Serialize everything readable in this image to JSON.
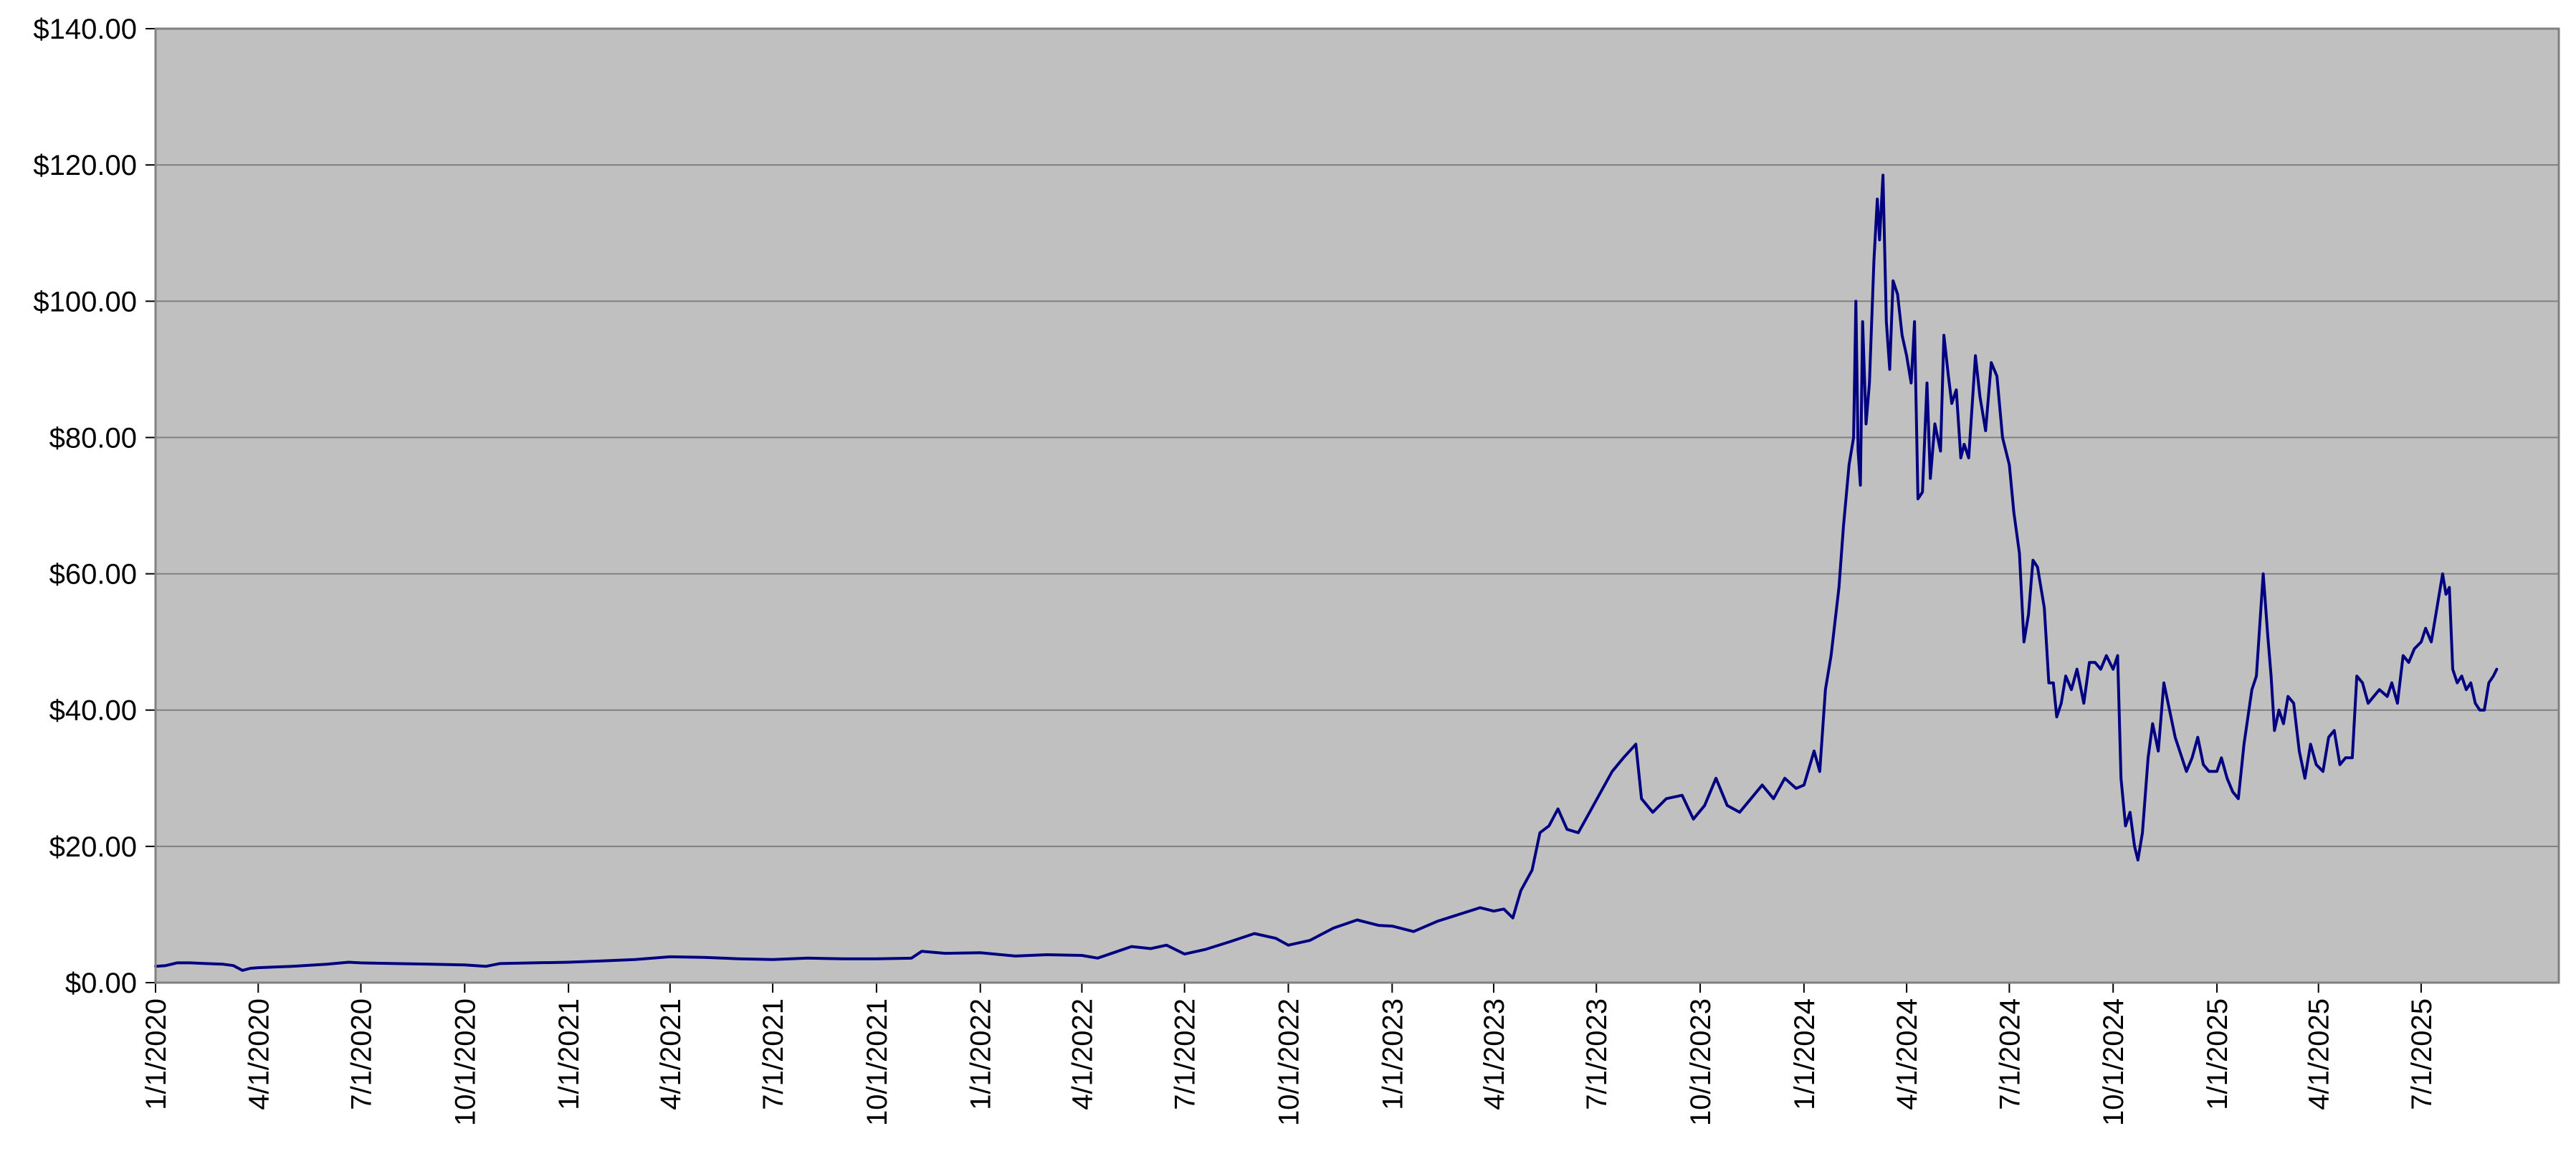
{
  "chart_data": {
    "type": "line",
    "title": "",
    "xlabel": "",
    "ylabel": "",
    "x_axis": {
      "kind": "date",
      "range": [
        "2020-01-01",
        "2025-10-31"
      ],
      "tick_values": [
        "2020-01-01",
        "2020-04-01",
        "2020-07-01",
        "2020-10-01",
        "2021-01-01",
        "2021-04-01",
        "2021-07-01",
        "2021-10-01",
        "2022-01-01",
        "2022-04-01",
        "2022-07-01",
        "2022-10-01",
        "2023-01-01",
        "2023-04-01",
        "2023-07-01",
        "2023-10-01",
        "2024-01-01",
        "2024-04-01",
        "2024-07-01",
        "2024-10-01",
        "2025-01-01",
        "2025-04-01",
        "2025-07-01"
      ],
      "tick_labels": [
        "1/1/2020",
        "4/1/2020",
        "7/1/2020",
        "10/1/2020",
        "1/1/2021",
        "4/1/2021",
        "7/1/2021",
        "10/1/2021",
        "1/1/2022",
        "4/1/2022",
        "7/1/2022",
        "10/1/2022",
        "1/1/2023",
        "4/1/2023",
        "7/1/2023",
        "10/1/2023",
        "1/1/2024",
        "4/1/2024",
        "7/1/2024",
        "10/1/2024",
        "1/1/2025",
        "4/1/2025",
        "7/1/2025"
      ]
    },
    "y_axis": {
      "range": [
        0,
        140
      ],
      "tick_values": [
        0,
        20,
        40,
        60,
        80,
        100,
        120,
        140
      ],
      "tick_labels": [
        "$0.00",
        "$20.00",
        "$40.00",
        "$60.00",
        "$80.00",
        "$100.00",
        "$120.00",
        "$140.00"
      ]
    },
    "grid": {
      "horizontal": true,
      "vertical": false
    },
    "legend": "none",
    "colors": {
      "plot_background": "#c0c0c0",
      "line": "#000080",
      "gridline": "#808080",
      "axis": "#000000"
    },
    "series": [
      {
        "points": [
          [
            "2020-01-01",
            2.4
          ],
          [
            "2020-01-10",
            2.5
          ],
          [
            "2020-01-20",
            2.9
          ],
          [
            "2020-02-01",
            2.9
          ],
          [
            "2020-02-15",
            2.8
          ],
          [
            "2020-03-01",
            2.7
          ],
          [
            "2020-03-10",
            2.5
          ],
          [
            "2020-03-18",
            1.8
          ],
          [
            "2020-03-25",
            2.1
          ],
          [
            "2020-04-01",
            2.2
          ],
          [
            "2020-05-01",
            2.4
          ],
          [
            "2020-06-01",
            2.7
          ],
          [
            "2020-06-20",
            3.0
          ],
          [
            "2020-07-01",
            2.9
          ],
          [
            "2020-08-01",
            2.8
          ],
          [
            "2020-09-01",
            2.7
          ],
          [
            "2020-10-01",
            2.6
          ],
          [
            "2020-10-20",
            2.4
          ],
          [
            "2020-11-01",
            2.8
          ],
          [
            "2020-12-01",
            2.9
          ],
          [
            "2021-01-01",
            3.0
          ],
          [
            "2021-02-01",
            3.2
          ],
          [
            "2021-03-01",
            3.4
          ],
          [
            "2021-04-01",
            3.8
          ],
          [
            "2021-05-01",
            3.7
          ],
          [
            "2021-06-01",
            3.5
          ],
          [
            "2021-07-01",
            3.4
          ],
          [
            "2021-08-01",
            3.6
          ],
          [
            "2021-09-01",
            3.5
          ],
          [
            "2021-10-01",
            3.5
          ],
          [
            "2021-11-01",
            3.6
          ],
          [
            "2021-11-10",
            4.6
          ],
          [
            "2021-12-01",
            4.3
          ],
          [
            "2022-01-01",
            4.4
          ],
          [
            "2022-02-01",
            3.9
          ],
          [
            "2022-03-01",
            4.1
          ],
          [
            "2022-04-01",
            4.0
          ],
          [
            "2022-04-15",
            3.6
          ],
          [
            "2022-05-01",
            4.5
          ],
          [
            "2022-05-15",
            5.3
          ],
          [
            "2022-06-01",
            5.0
          ],
          [
            "2022-06-15",
            5.5
          ],
          [
            "2022-07-01",
            4.2
          ],
          [
            "2022-07-20",
            4.9
          ],
          [
            "2022-08-10",
            6.0
          ],
          [
            "2022-09-01",
            7.2
          ],
          [
            "2022-09-20",
            6.5
          ],
          [
            "2022-10-01",
            5.5
          ],
          [
            "2022-10-20",
            6.2
          ],
          [
            "2022-11-10",
            8.0
          ],
          [
            "2022-12-01",
            9.2
          ],
          [
            "2022-12-20",
            8.4
          ],
          [
            "2023-01-01",
            8.3
          ],
          [
            "2023-01-20",
            7.5
          ],
          [
            "2023-02-10",
            9.0
          ],
          [
            "2023-03-01",
            10.0
          ],
          [
            "2023-03-20",
            11.0
          ],
          [
            "2023-04-01",
            10.5
          ],
          [
            "2023-04-10",
            10.8
          ],
          [
            "2023-04-18",
            9.5
          ],
          [
            "2023-04-25",
            13.5
          ],
          [
            "2023-05-05",
            16.5
          ],
          [
            "2023-05-12",
            22.0
          ],
          [
            "2023-05-20",
            23.0
          ],
          [
            "2023-05-28",
            25.5
          ],
          [
            "2023-06-05",
            22.5
          ],
          [
            "2023-06-15",
            22.0
          ],
          [
            "2023-06-25",
            25.0
          ],
          [
            "2023-07-05",
            28.0
          ],
          [
            "2023-07-15",
            31.0
          ],
          [
            "2023-07-25",
            33.0
          ],
          [
            "2023-08-05",
            35.0
          ],
          [
            "2023-08-10",
            27.0
          ],
          [
            "2023-08-20",
            25.0
          ],
          [
            "2023-09-01",
            27.0
          ],
          [
            "2023-09-15",
            27.5
          ],
          [
            "2023-09-25",
            24.0
          ],
          [
            "2023-10-05",
            26.0
          ],
          [
            "2023-10-15",
            30.0
          ],
          [
            "2023-10-25",
            26.0
          ],
          [
            "2023-11-05",
            25.0
          ],
          [
            "2023-11-15",
            27.0
          ],
          [
            "2023-11-25",
            29.0
          ],
          [
            "2023-12-05",
            27.0
          ],
          [
            "2023-12-15",
            30.0
          ],
          [
            "2023-12-25",
            28.5
          ],
          [
            "2024-01-01",
            29.0
          ],
          [
            "2024-01-10",
            34.0
          ],
          [
            "2024-01-15",
            31.0
          ],
          [
            "2024-01-20",
            43.0
          ],
          [
            "2024-01-25",
            48.0
          ],
          [
            "2024-02-01",
            58.0
          ],
          [
            "2024-02-05",
            67.0
          ],
          [
            "2024-02-10",
            76.0
          ],
          [
            "2024-02-14",
            80.0
          ],
          [
            "2024-02-16",
            100.0
          ],
          [
            "2024-02-18",
            78.0
          ],
          [
            "2024-02-20",
            73.0
          ],
          [
            "2024-02-22",
            97.0
          ],
          [
            "2024-02-25",
            82.0
          ],
          [
            "2024-02-28",
            88.0
          ],
          [
            "2024-03-03",
            106.0
          ],
          [
            "2024-03-06",
            115.0
          ],
          [
            "2024-03-08",
            109.0
          ],
          [
            "2024-03-11",
            118.5
          ],
          [
            "2024-03-14",
            97.0
          ],
          [
            "2024-03-17",
            90.0
          ],
          [
            "2024-03-20",
            103.0
          ],
          [
            "2024-03-24",
            101.0
          ],
          [
            "2024-03-28",
            95.0
          ],
          [
            "2024-04-01",
            92.0
          ],
          [
            "2024-04-05",
            88.0
          ],
          [
            "2024-04-08",
            97.0
          ],
          [
            "2024-04-11",
            71.0
          ],
          [
            "2024-04-15",
            72.0
          ],
          [
            "2024-04-19",
            88.0
          ],
          [
            "2024-04-22",
            74.0
          ],
          [
            "2024-04-26",
            82.0
          ],
          [
            "2024-05-01",
            78.0
          ],
          [
            "2024-05-04",
            95.0
          ],
          [
            "2024-05-08",
            89.0
          ],
          [
            "2024-05-11",
            85.0
          ],
          [
            "2024-05-15",
            87.0
          ],
          [
            "2024-05-19",
            77.0
          ],
          [
            "2024-05-22",
            79.0
          ],
          [
            "2024-05-26",
            77.0
          ],
          [
            "2024-06-01",
            92.0
          ],
          [
            "2024-06-05",
            86.0
          ],
          [
            "2024-06-10",
            81.0
          ],
          [
            "2024-06-15",
            91.0
          ],
          [
            "2024-06-20",
            89.0
          ],
          [
            "2024-06-25",
            80.0
          ],
          [
            "2024-07-01",
            76.0
          ],
          [
            "2024-07-05",
            69.0
          ],
          [
            "2024-07-10",
            63.0
          ],
          [
            "2024-07-14",
            50.0
          ],
          [
            "2024-07-18",
            54.0
          ],
          [
            "2024-07-22",
            62.0
          ],
          [
            "2024-07-26",
            61.0
          ],
          [
            "2024-08-01",
            55.0
          ],
          [
            "2024-08-05",
            44.0
          ],
          [
            "2024-08-09",
            44.0
          ],
          [
            "2024-08-12",
            39.0
          ],
          [
            "2024-08-16",
            41.0
          ],
          [
            "2024-08-20",
            45.0
          ],
          [
            "2024-08-25",
            43.0
          ],
          [
            "2024-08-30",
            46.0
          ],
          [
            "2024-09-05",
            41.0
          ],
          [
            "2024-09-10",
            47.0
          ],
          [
            "2024-09-15",
            47.0
          ],
          [
            "2024-09-20",
            46.0
          ],
          [
            "2024-09-25",
            48.0
          ],
          [
            "2024-10-01",
            46.0
          ],
          [
            "2024-10-05",
            48.0
          ],
          [
            "2024-10-08",
            30.0
          ],
          [
            "2024-10-12",
            23.0
          ],
          [
            "2024-10-16",
            25.0
          ],
          [
            "2024-10-20",
            20.0
          ],
          [
            "2024-10-23",
            18.0
          ],
          [
            "2024-10-27",
            22.0
          ],
          [
            "2024-11-01",
            33.0
          ],
          [
            "2024-11-05",
            38.0
          ],
          [
            "2024-11-10",
            34.0
          ],
          [
            "2024-11-15",
            44.0
          ],
          [
            "2024-11-20",
            40.0
          ],
          [
            "2024-11-25",
            36.0
          ],
          [
            "2024-12-01",
            33.0
          ],
          [
            "2024-12-05",
            31.0
          ],
          [
            "2024-12-10",
            33.0
          ],
          [
            "2024-12-15",
            36.0
          ],
          [
            "2024-12-20",
            32.0
          ],
          [
            "2024-12-25",
            31.0
          ],
          [
            "2025-01-01",
            31.0
          ],
          [
            "2025-01-05",
            33.0
          ],
          [
            "2025-01-10",
            30.0
          ],
          [
            "2025-01-15",
            28.0
          ],
          [
            "2025-01-20",
            27.0
          ],
          [
            "2025-01-25",
            35.0
          ],
          [
            "2025-02-01",
            43.0
          ],
          [
            "2025-02-05",
            45.0
          ],
          [
            "2025-02-09",
            55.0
          ],
          [
            "2025-02-11",
            60.0
          ],
          [
            "2025-02-15",
            51.0
          ],
          [
            "2025-02-18",
            45.0
          ],
          [
            "2025-02-21",
            37.0
          ],
          [
            "2025-02-25",
            40.0
          ],
          [
            "2025-03-01",
            38.0
          ],
          [
            "2025-03-05",
            42.0
          ],
          [
            "2025-03-10",
            41.0
          ],
          [
            "2025-03-15",
            34.0
          ],
          [
            "2025-03-20",
            30.0
          ],
          [
            "2025-03-25",
            35.0
          ],
          [
            "2025-03-30",
            32.0
          ],
          [
            "2025-04-05",
            31.0
          ],
          [
            "2025-04-10",
            36.0
          ],
          [
            "2025-04-15",
            37.0
          ],
          [
            "2025-04-20",
            32.0
          ],
          [
            "2025-04-25",
            33.0
          ],
          [
            "2025-05-01",
            33.0
          ],
          [
            "2025-05-05",
            45.0
          ],
          [
            "2025-05-10",
            44.0
          ],
          [
            "2025-05-15",
            41.0
          ],
          [
            "2025-05-20",
            42.0
          ],
          [
            "2025-05-25",
            43.0
          ],
          [
            "2025-06-01",
            42.0
          ],
          [
            "2025-06-05",
            44.0
          ],
          [
            "2025-06-10",
            41.0
          ],
          [
            "2025-06-15",
            48.0
          ],
          [
            "2025-06-20",
            47.0
          ],
          [
            "2025-06-25",
            49.0
          ],
          [
            "2025-07-01",
            50.0
          ],
          [
            "2025-07-05",
            52.0
          ],
          [
            "2025-07-10",
            50.0
          ],
          [
            "2025-07-15",
            55.0
          ],
          [
            "2025-07-20",
            60.0
          ],
          [
            "2025-07-23",
            57.0
          ],
          [
            "2025-07-26",
            58.0
          ],
          [
            "2025-07-29",
            46.0
          ],
          [
            "2025-08-02",
            44.0
          ],
          [
            "2025-08-06",
            45.0
          ],
          [
            "2025-08-10",
            43.0
          ],
          [
            "2025-08-14",
            44.0
          ],
          [
            "2025-08-18",
            41.0
          ],
          [
            "2025-08-22",
            40.0
          ],
          [
            "2025-08-26",
            40.0
          ],
          [
            "2025-08-30",
            44.0
          ],
          [
            "2025-09-03",
            45.0
          ],
          [
            "2025-09-06",
            46.0
          ]
        ]
      }
    ]
  }
}
